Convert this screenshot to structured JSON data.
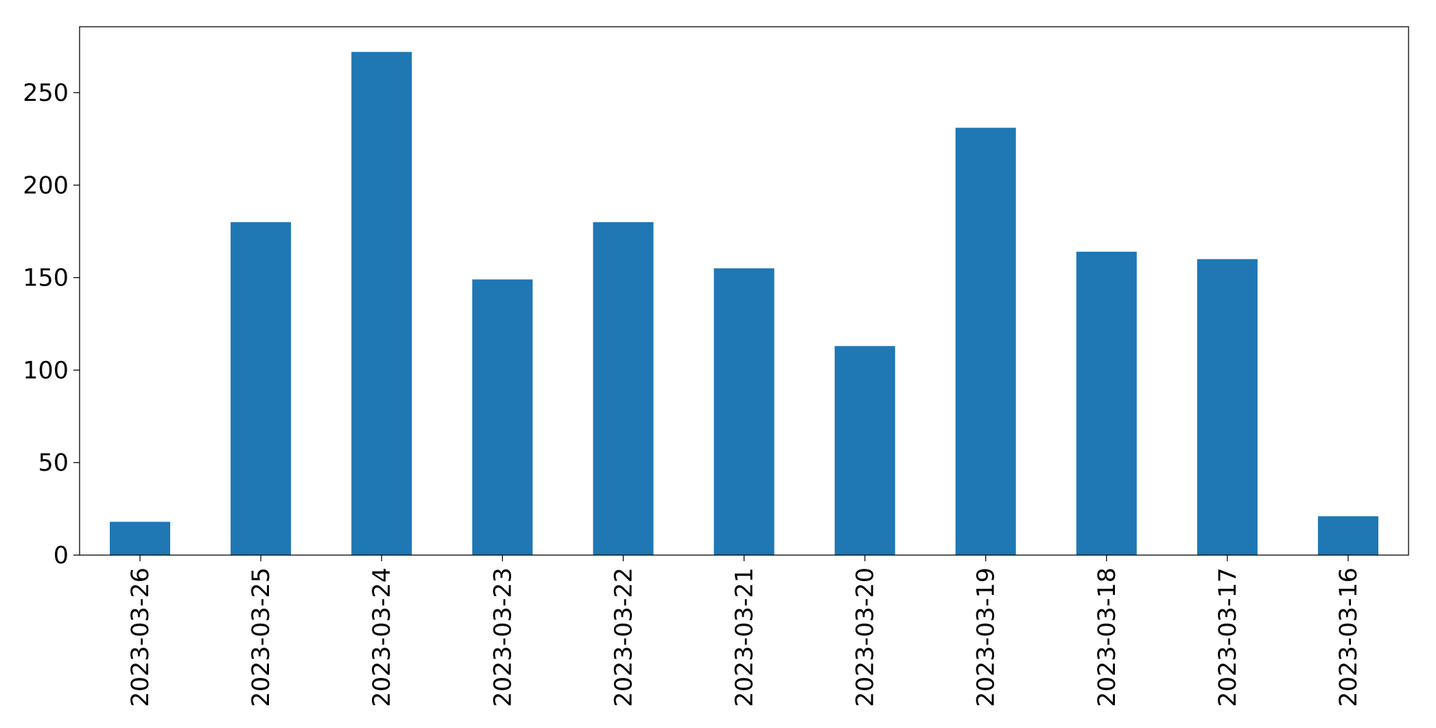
{
  "chart_data": {
    "type": "bar",
    "categories": [
      "2023-03-26",
      "2023-03-25",
      "2023-03-24",
      "2023-03-23",
      "2023-03-22",
      "2023-03-21",
      "2023-03-20",
      "2023-03-19",
      "2023-03-18",
      "2023-03-17",
      "2023-03-16"
    ],
    "values": [
      18,
      180,
      272,
      149,
      180,
      155,
      113,
      231,
      164,
      160,
      21
    ],
    "color": "#1f77b4",
    "ylim": [
      0,
      285.6
    ],
    "yticks": [
      0,
      50,
      100,
      150,
      200,
      250
    ],
    "grid": false
  }
}
